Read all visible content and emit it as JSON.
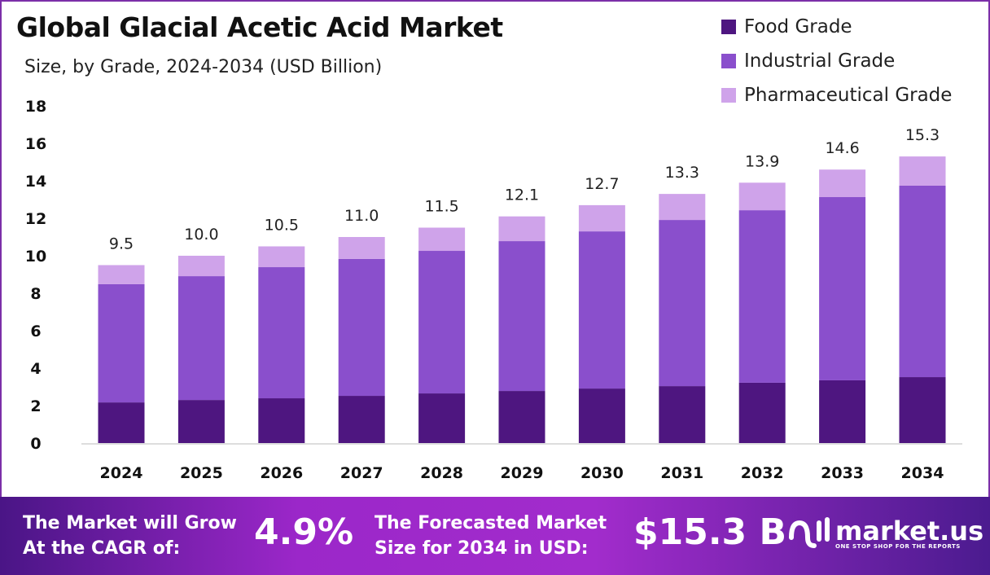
{
  "chart_data": {
    "type": "bar",
    "stacked": true,
    "title": "Global Glacial Acetic Acid Market",
    "subtitle": "Size, by Grade, 2024-2034 (USD Billion)",
    "xlabel": "",
    "ylabel": "",
    "ylim": [
      0,
      18
    ],
    "yticks": [
      "0",
      "2",
      "4",
      "6",
      "8",
      "10",
      "12",
      "14",
      "16",
      "18"
    ],
    "categories": [
      "2024",
      "2025",
      "2026",
      "2027",
      "2028",
      "2029",
      "2030",
      "2031",
      "2032",
      "2033",
      "2034"
    ],
    "series": [
      {
        "name": "Food Grade",
        "color": "#4e1680",
        "values": [
          2.17,
          2.3,
          2.39,
          2.52,
          2.65,
          2.78,
          2.91,
          3.04,
          3.22,
          3.35,
          3.52
        ]
      },
      {
        "name": "Industrial Grade",
        "color": "#8a4fcc",
        "values": [
          6.31,
          6.61,
          7.0,
          7.31,
          7.61,
          8.0,
          8.39,
          8.87,
          9.21,
          9.78,
          10.22
        ]
      },
      {
        "name": "Pharmaceutical Grade",
        "color": "#cfa3ea",
        "values": [
          1.02,
          1.09,
          1.11,
          1.17,
          1.24,
          1.32,
          1.4,
          1.39,
          1.47,
          1.47,
          1.56
        ]
      }
    ],
    "totals": [
      "9.5",
      "10.0",
      "10.5",
      "11.0",
      "11.5",
      "12.1",
      "12.7",
      "13.3",
      "13.9",
      "14.6",
      "15.3"
    ],
    "legend_position": "top-right",
    "grid": false
  },
  "footer": {
    "cagr_text_1": "The Market will Grow",
    "cagr_text_2": "At the CAGR of:",
    "cagr_value": "4.9%",
    "forecast_text_1": "The Forecasted Market",
    "forecast_text_2": "Size for 2034 in USD:",
    "forecast_value": "$15.3 B",
    "brand_name": "market.us",
    "brand_tagline": "ONE STOP SHOP FOR THE REPORTS"
  }
}
